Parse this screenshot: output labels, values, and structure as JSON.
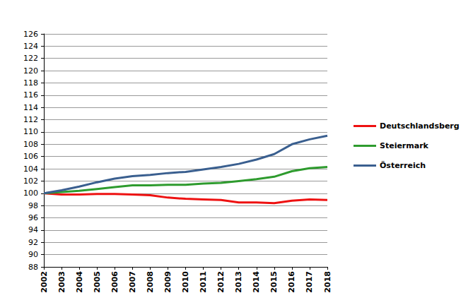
{
  "chart_data": {
    "type": "line",
    "categories": [
      "2002",
      "2003",
      "2004",
      "2005",
      "2006",
      "2007",
      "2008",
      "2009",
      "2010",
      "2011",
      "2012",
      "2013",
      "2014",
      "2015",
      "2016",
      "2017",
      "2018"
    ],
    "series": [
      {
        "name": "Deutschlandsberg",
        "color": "#ee1111",
        "values": [
          100,
          99.8,
          99.8,
          99.9,
          99.9,
          99.8,
          99.7,
          99.3,
          99.1,
          99.0,
          98.9,
          98.5,
          98.5,
          98.4,
          98.8,
          99.0,
          98.9
        ]
      },
      {
        "name": "Steiermark",
        "color": "#2e9b2e",
        "values": [
          100,
          100.2,
          100.4,
          100.7,
          101.0,
          101.3,
          101.3,
          101.4,
          101.4,
          101.6,
          101.7,
          102.0,
          102.3,
          102.7,
          103.6,
          104.1,
          104.3
        ]
      },
      {
        "name": "Österreich",
        "color": "#3a5f8f",
        "values": [
          100,
          100.5,
          101.1,
          101.8,
          102.4,
          102.8,
          103.0,
          103.3,
          103.5,
          103.9,
          104.3,
          104.8,
          105.5,
          106.4,
          108.0,
          108.8,
          109.4
        ]
      }
    ],
    "ylim": [
      88,
      126
    ],
    "yticks": [
      88,
      90,
      92,
      94,
      96,
      98,
      100,
      102,
      104,
      106,
      108,
      110,
      112,
      114,
      116,
      118,
      120,
      122,
      124,
      126
    ],
    "grid": true,
    "legend": "right"
  }
}
